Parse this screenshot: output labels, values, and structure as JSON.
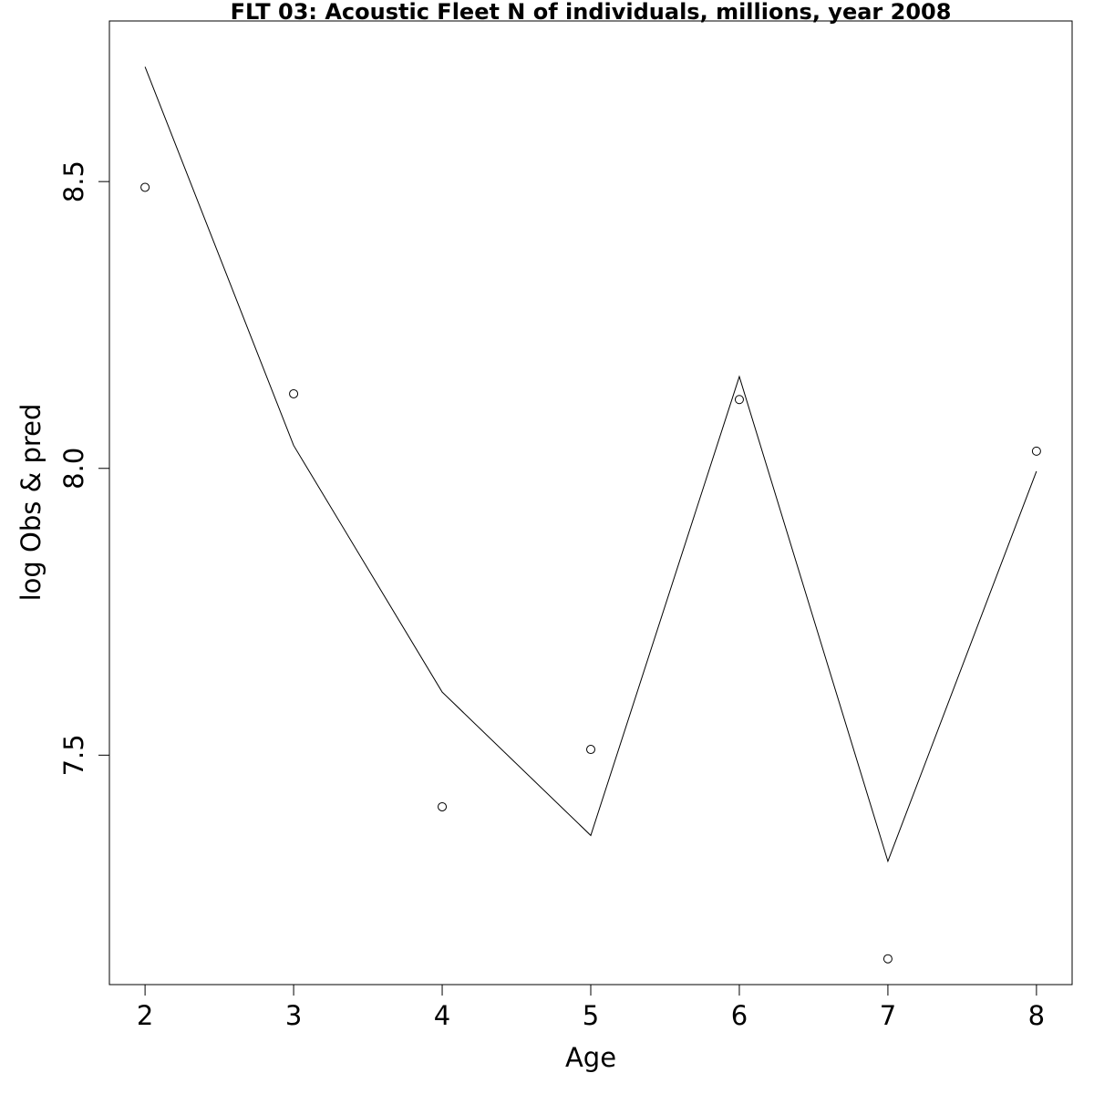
{
  "chart_data": {
    "type": "line",
    "title": "FLT 03: Acoustic Fleet  N of individuals, millions, year 2008",
    "xlabel": "Age",
    "ylabel": "log Obs & pred",
    "x": [
      2,
      3,
      4,
      5,
      6,
      7,
      8
    ],
    "xlim": [
      1.76,
      8.24
    ],
    "ylim": [
      7.1,
      8.78
    ],
    "xticks": [
      "2",
      "3",
      "4",
      "5",
      "6",
      "7",
      "8"
    ],
    "yticks": [
      "7.5",
      "8.0",
      "8.5"
    ],
    "grid": false,
    "series": [
      {
        "kind": "points",
        "marker": "open-circle",
        "values": [
          8.49,
          8.13,
          7.41,
          7.51,
          8.12,
          7.145,
          8.03
        ]
      },
      {
        "kind": "line",
        "values": [
          8.7,
          8.04,
          7.61,
          7.36,
          8.16,
          7.315,
          7.995
        ]
      }
    ]
  }
}
